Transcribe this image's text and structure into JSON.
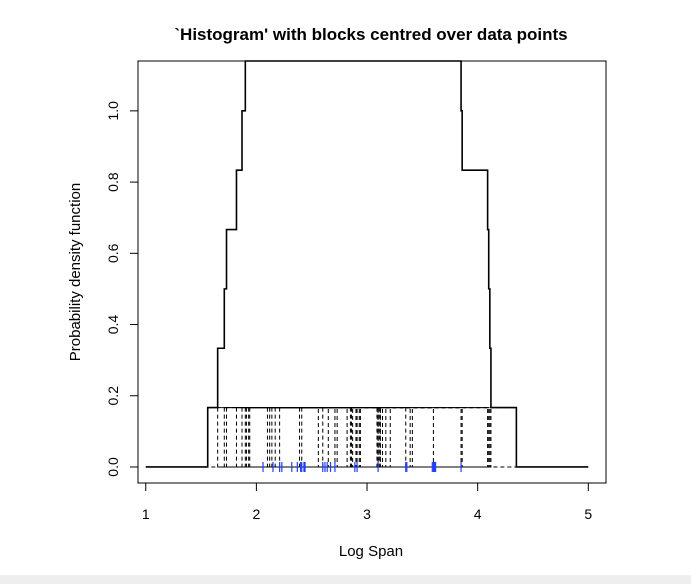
{
  "chart_data": {
    "type": "line",
    "title": "`Histogram' with blocks centred over data points",
    "xlabel": "Log Span",
    "ylabel": "Probability density function",
    "xlim": [
      0.93,
      5.16
    ],
    "ylim": [
      -0.045,
      1.14
    ],
    "x_ticks": [
      "1",
      "2",
      "3",
      "4",
      "5"
    ],
    "y_ticks": [
      "0.0",
      "0.2",
      "0.4",
      "0.6",
      "0.8",
      "1.0"
    ],
    "block_height": 0.1667,
    "block_width": 1.0,
    "data_points": [
      2.06,
      2.15,
      2.21,
      2.23,
      2.32,
      2.37,
      2.4,
      2.41,
      2.43,
      2.44,
      2.6,
      2.62,
      2.64,
      2.67,
      2.71,
      2.89,
      2.91,
      3.1,
      3.35,
      3.36,
      3.59,
      3.6,
      3.61,
      3.62,
      3.85
    ],
    "rug_color": "#1f3fff",
    "line_color": "#000000"
  }
}
